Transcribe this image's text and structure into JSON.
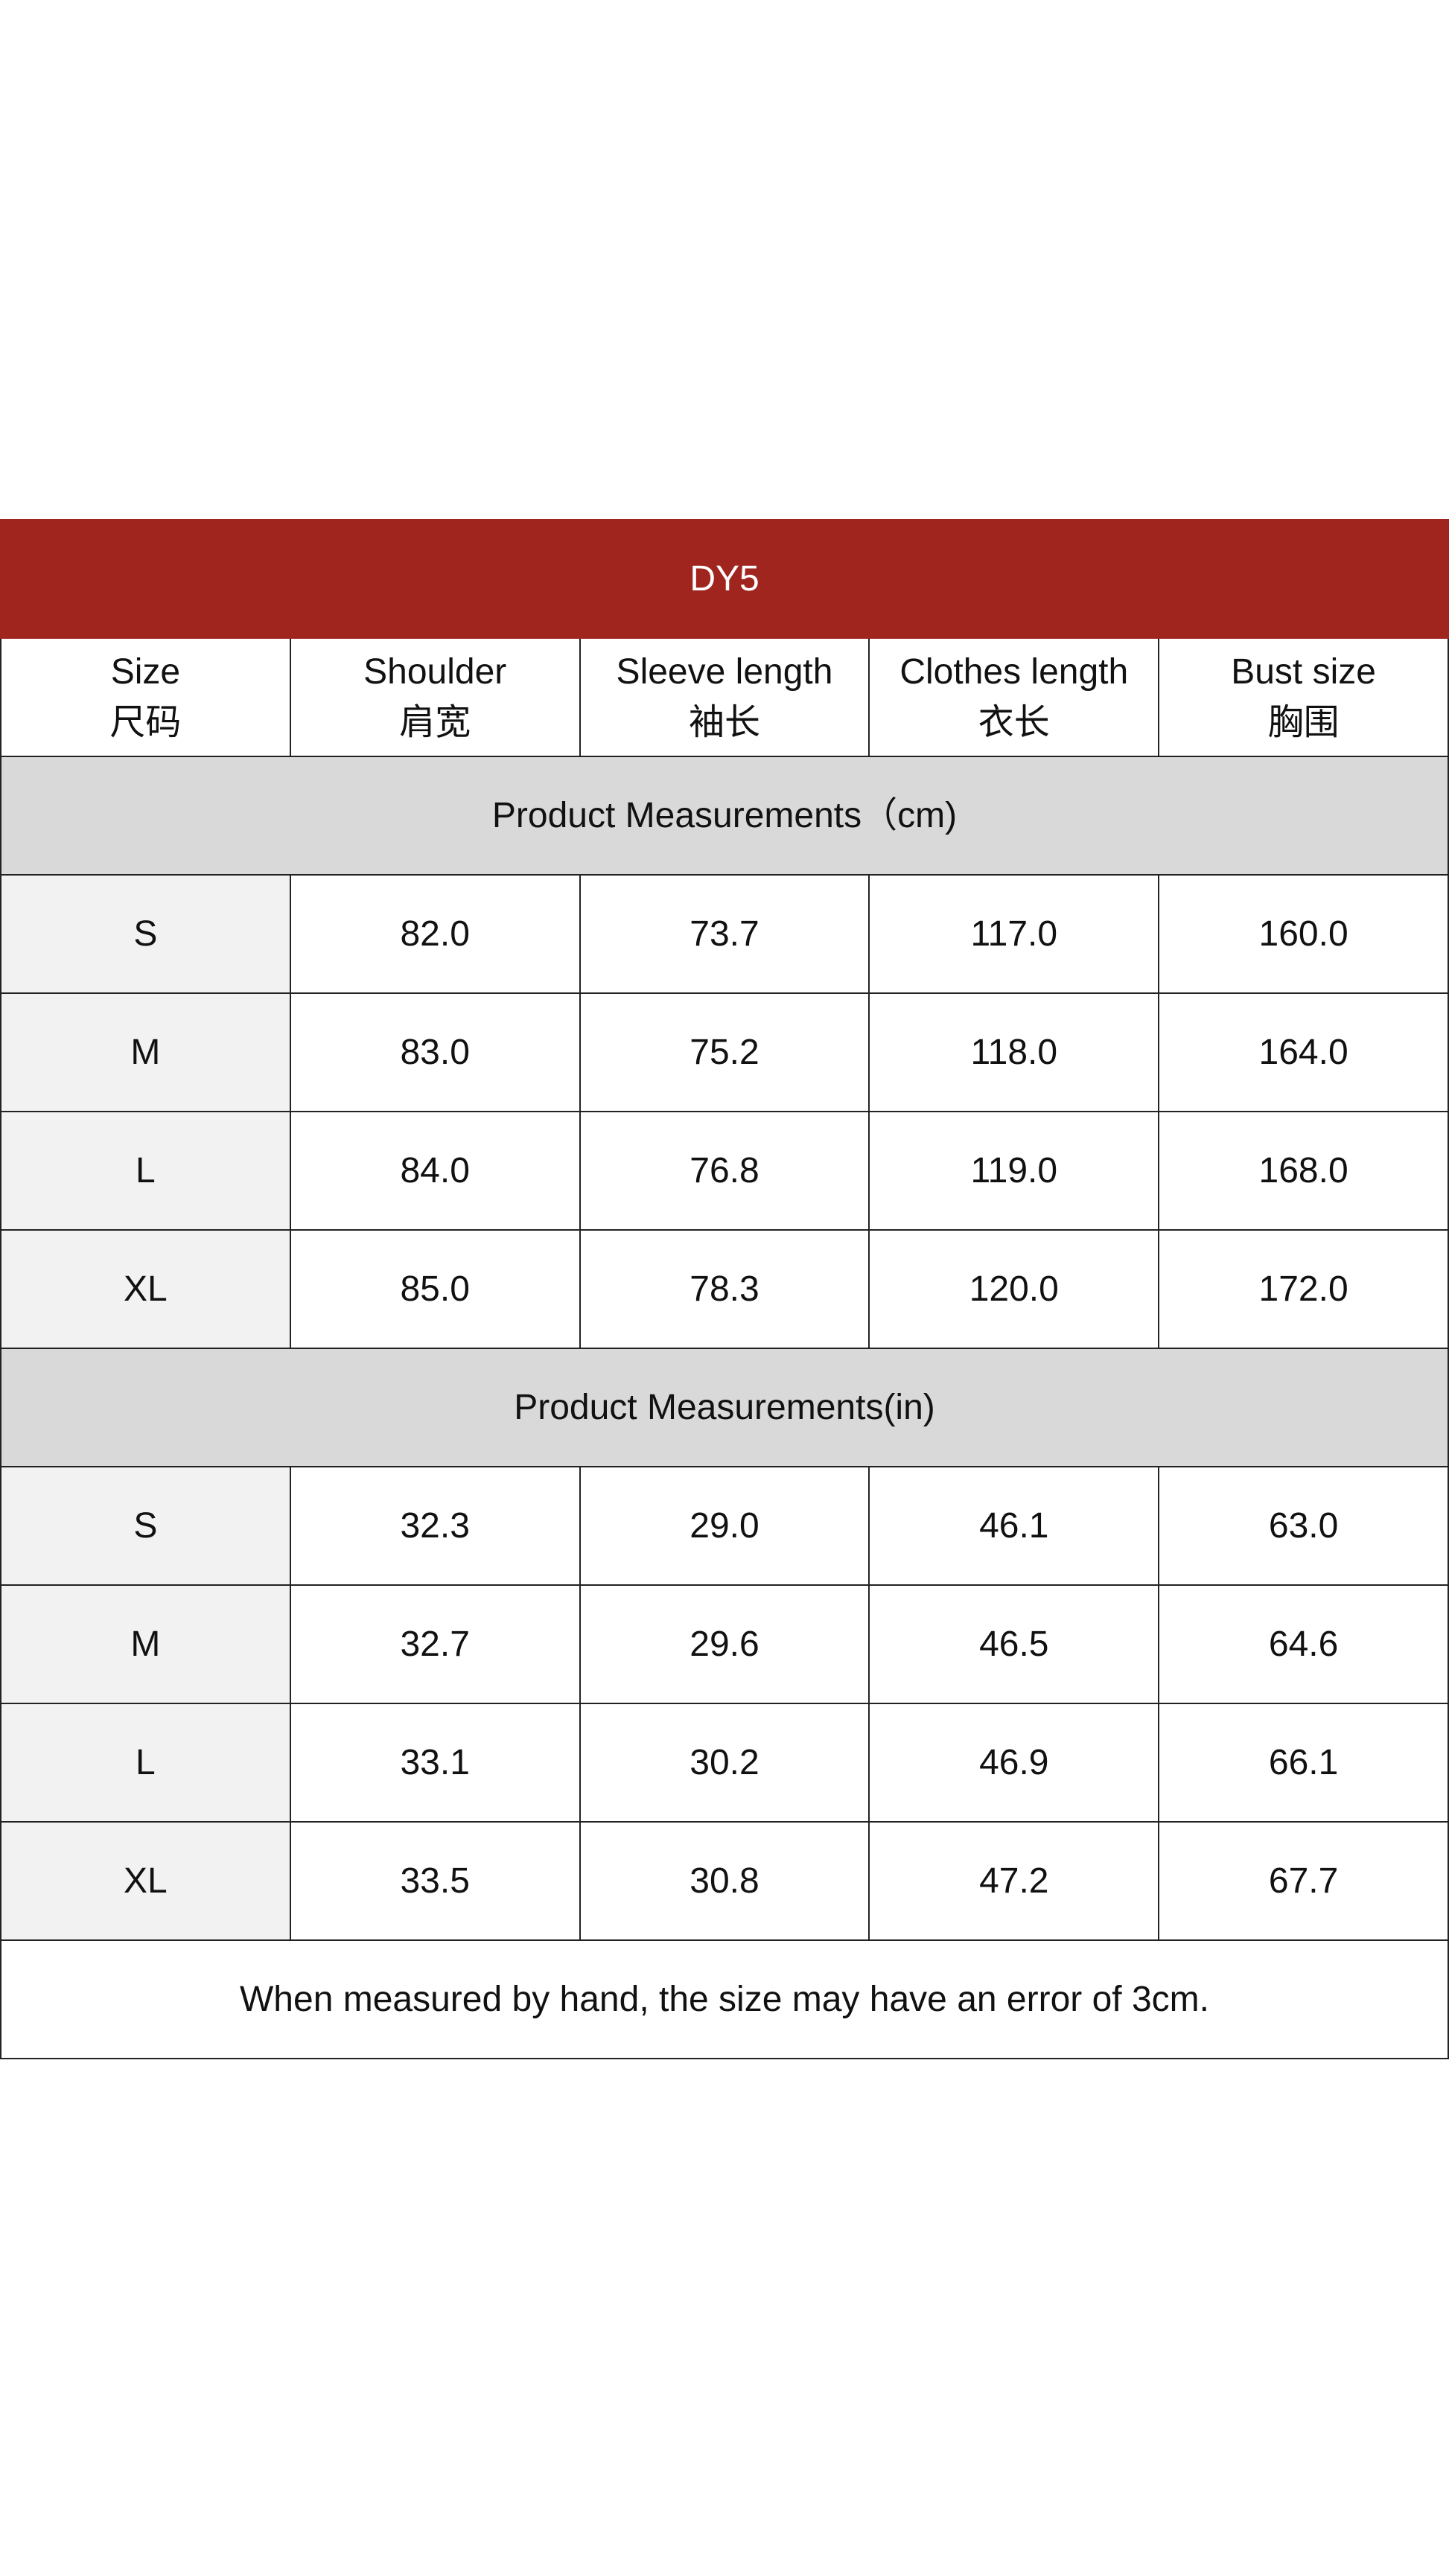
{
  "title": "DY5",
  "columns": [
    {
      "en": "Size",
      "zh": "尺码"
    },
    {
      "en": "Shoulder",
      "zh": "肩宽"
    },
    {
      "en": "Sleeve length",
      "zh": "袖长"
    },
    {
      "en": "Clothes length",
      "zh": "衣长"
    },
    {
      "en": "Bust size",
      "zh": "胸围"
    }
  ],
  "sections": [
    {
      "title": "Product Measurements（cm)",
      "rows": [
        [
          "S",
          "82.0",
          "73.7",
          "117.0",
          "160.0"
        ],
        [
          "M",
          "83.0",
          "75.2",
          "118.0",
          "164.0"
        ],
        [
          "L",
          "84.0",
          "76.8",
          "119.0",
          "168.0"
        ],
        [
          "XL",
          "85.0",
          "78.3",
          "120.0",
          "172.0"
        ]
      ]
    },
    {
      "title": "Product Measurements(in)",
      "rows": [
        [
          "S",
          "32.3",
          "29.0",
          "46.1",
          "63.0"
        ],
        [
          "M",
          "32.7",
          "29.6",
          "46.5",
          "64.6"
        ],
        [
          "L",
          "33.1",
          "30.2",
          "46.9",
          "66.1"
        ],
        [
          "XL",
          "33.5",
          "30.8",
          "47.2",
          "67.7"
        ]
      ]
    }
  ],
  "note": "When measured by hand, the size may have an error of 3cm."
}
